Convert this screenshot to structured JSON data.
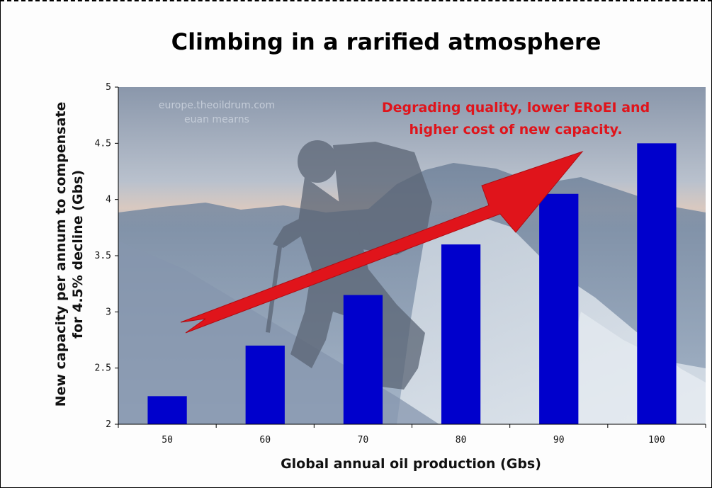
{
  "chart_data": {
    "type": "bar",
    "title": "Climbing in a rarified atmosphere",
    "xlabel": "Global annual oil production (Gbs)",
    "ylabel_line1": "New capacity per annum to compensate",
    "ylabel_line2": "for 4.5% decline (Gbs)",
    "categories": [
      "50",
      "60",
      "70",
      "80",
      "90",
      "100"
    ],
    "values": [
      2.25,
      2.7,
      3.15,
      3.6,
      4.05,
      4.5
    ],
    "ylim": [
      2,
      5
    ],
    "yticks": [
      "2",
      "2.5",
      "3",
      "3.5",
      "4",
      "4.5",
      "5"
    ],
    "bar_color": "#0000cc",
    "annotation_line1": "Degrading quality, lower ERoEI and",
    "annotation_line2": "higher cost of new capacity.",
    "annotation_color": "#e0141b",
    "watermark_line1": "europe.theoildrum.com",
    "watermark_line2": "euan mearns",
    "background": "mountain-climber-photo",
    "grid": false
  }
}
